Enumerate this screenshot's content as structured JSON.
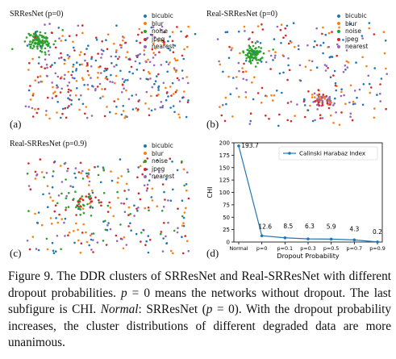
{
  "panels": {
    "a": {
      "title": "SRResNet (p=0)",
      "label": "(a)"
    },
    "b": {
      "title": "Real-SRResNet (p=0)",
      "label": "(b)"
    },
    "c": {
      "title": "Real-SRResNet (p=0.9)",
      "label": "(c)"
    },
    "d": {
      "label": "(d)"
    }
  },
  "legend": {
    "items": [
      {
        "label": "bicubic",
        "color": "#1f77b4"
      },
      {
        "label": "blur",
        "color": "#ff7f0e"
      },
      {
        "label": "noise",
        "color": "#2ca02c"
      },
      {
        "label": "jpeg",
        "color": "#d62728"
      },
      {
        "label": "nearest",
        "color": "#9467bd"
      }
    ]
  },
  "chart_data": {
    "type": "line",
    "categories": [
      "Normal",
      "p=0",
      "p=0.1",
      "p=0.3",
      "p=0.5",
      "p=0.7",
      "p=0.9"
    ],
    "series": [
      {
        "name": "Calinski Harabaz Index",
        "values": [
          193.7,
          12.6,
          8.5,
          6.3,
          5.9,
          4.3,
          0.2
        ],
        "color": "#1f77b4"
      }
    ],
    "data_labels": [
      "193.7",
      "12.6",
      "8.5",
      "6.3",
      "5.9",
      "4.3",
      "0.2"
    ],
    "xlabel": "Dropout Probability",
    "ylabel": "CHI",
    "ylim": [
      0,
      200
    ],
    "yticks": [
      0,
      25,
      50,
      75,
      100,
      125,
      150,
      175,
      200
    ],
    "legend_position": "top-right",
    "grid": false
  },
  "caption": {
    "lead": "Figure 9.  The DDR clusters of SRResNet and Real-SRResNet with different dropout probabilities. ",
    "math_p": "p",
    "eq_zero": " = 0",
    "mid": " means the networks without dropout. The last subfigure is CHI. ",
    "normal_word": "Normal",
    "after_normal": ": SRResNet (",
    "math_p2": "p",
    "eq_zero2": " = 0",
    "tail": "). With the dropout probability increases, the cluster distributions of different degraded data are more unanimous."
  }
}
